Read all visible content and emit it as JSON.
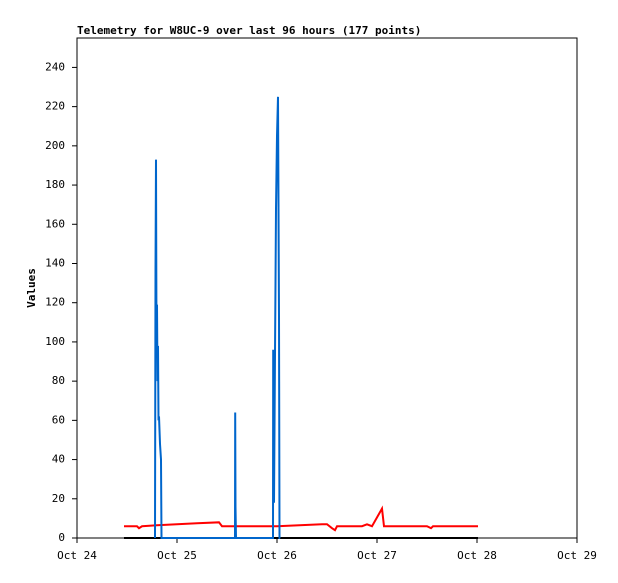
{
  "chart_data": {
    "type": "line",
    "title": "Telemetry for W8UC-9 over last 96 hours (177 points)",
    "y_label": "Values",
    "xlim": [
      0,
      5
    ],
    "xticks": [
      {
        "value": 0,
        "label": "Oct 24"
      },
      {
        "value": 1,
        "label": "Oct 25"
      },
      {
        "value": 2,
        "label": "Oct 26"
      },
      {
        "value": 3,
        "label": "Oct 27"
      },
      {
        "value": 4,
        "label": "Oct 28"
      },
      {
        "value": 5,
        "label": "Oct 29"
      }
    ],
    "ylim": [
      0,
      255
    ],
    "yticks": [
      0,
      20,
      40,
      60,
      80,
      100,
      120,
      140,
      160,
      180,
      200,
      220,
      240
    ],
    "series": [
      {
        "color": "#000000",
        "x": [
          0.47,
          4.01
        ],
        "values": [
          0,
          0
        ]
      },
      {
        "color": "#ff0000",
        "x": [
          0.47,
          0.6,
          0.62,
          0.65,
          0.8,
          1.0,
          1.2,
          1.42,
          1.45,
          2.0,
          2.45,
          2.5,
          2.55,
          2.58,
          2.6,
          2.85,
          2.9,
          2.95,
          3.05,
          3.07,
          3.5,
          3.54,
          3.56,
          4.01
        ],
        "values": [
          6,
          6,
          5,
          6,
          6.5,
          7,
          7.5,
          8,
          6,
          6,
          7,
          7,
          5,
          4,
          6,
          6,
          7,
          6,
          15,
          6,
          6,
          5,
          6,
          6
        ]
      },
      {
        "color": "#0066cc",
        "x": [
          0.78,
          0.785,
          0.79,
          0.795,
          0.8,
          0.805,
          0.81,
          0.815,
          0.82,
          0.83,
          0.84,
          0.845,
          0.85,
          0.851,
          1.58,
          1.582,
          1.585,
          1.59,
          1.592,
          1.96,
          1.962,
          1.965,
          1.97,
          1.975,
          1.98,
          1.985,
          1.99,
          2.0,
          2.01,
          2.02,
          2.025,
          2.03,
          2.032
        ],
        "values": [
          0,
          136,
          193,
          100,
          119,
          80,
          98,
          60,
          62,
          48,
          40,
          0,
          0,
          0,
          0,
          64,
          16,
          0,
          0,
          0,
          96,
          32,
          18,
          55,
          94,
          130,
          168,
          205,
          225,
          113,
          0,
          0,
          0
        ]
      }
    ]
  }
}
